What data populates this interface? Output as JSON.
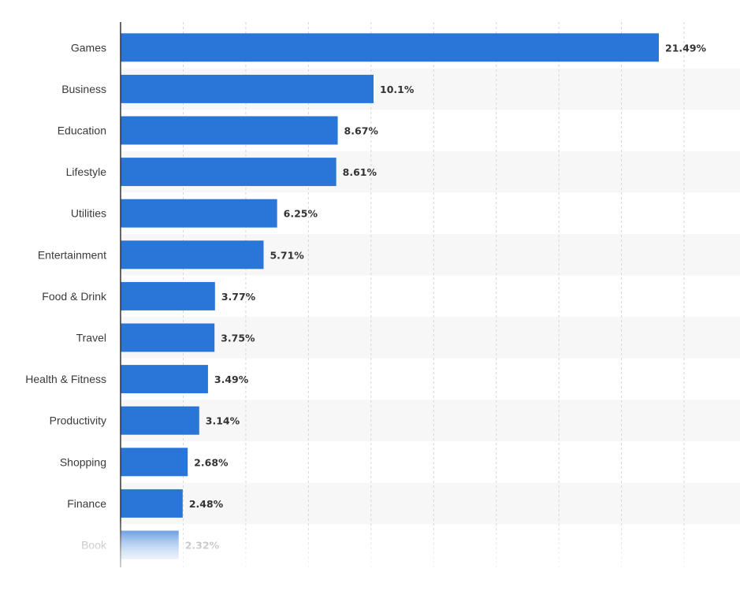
{
  "chart_data": {
    "type": "bar",
    "orientation": "horizontal",
    "title": "",
    "xlabel": "",
    "ylabel": "",
    "categories": [
      "Games",
      "Business",
      "Education",
      "Lifestyle",
      "Utilities",
      "Entertainment",
      "Food & Drink",
      "Travel",
      "Health & Fitness",
      "Productivity",
      "Shopping",
      "Finance",
      "Book"
    ],
    "values": [
      21.49,
      10.1,
      8.67,
      8.61,
      6.25,
      5.71,
      3.77,
      3.75,
      3.49,
      3.14,
      2.68,
      2.48,
      2.32
    ],
    "value_labels": [
      "21.49%",
      "10.1%",
      "8.67%",
      "8.61%",
      "6.25%",
      "5.71%",
      "3.77%",
      "3.75%",
      "3.49%",
      "3.14%",
      "2.68%",
      "2.48%",
      "2.32%"
    ],
    "unit": "%",
    "xlim": [
      0,
      25
    ],
    "grid": true,
    "legend": "none",
    "colors": {
      "bar": "#2a75d8",
      "grid": "#d6d6d6",
      "band": "#f7f7f7",
      "axis": "#333333"
    }
  }
}
